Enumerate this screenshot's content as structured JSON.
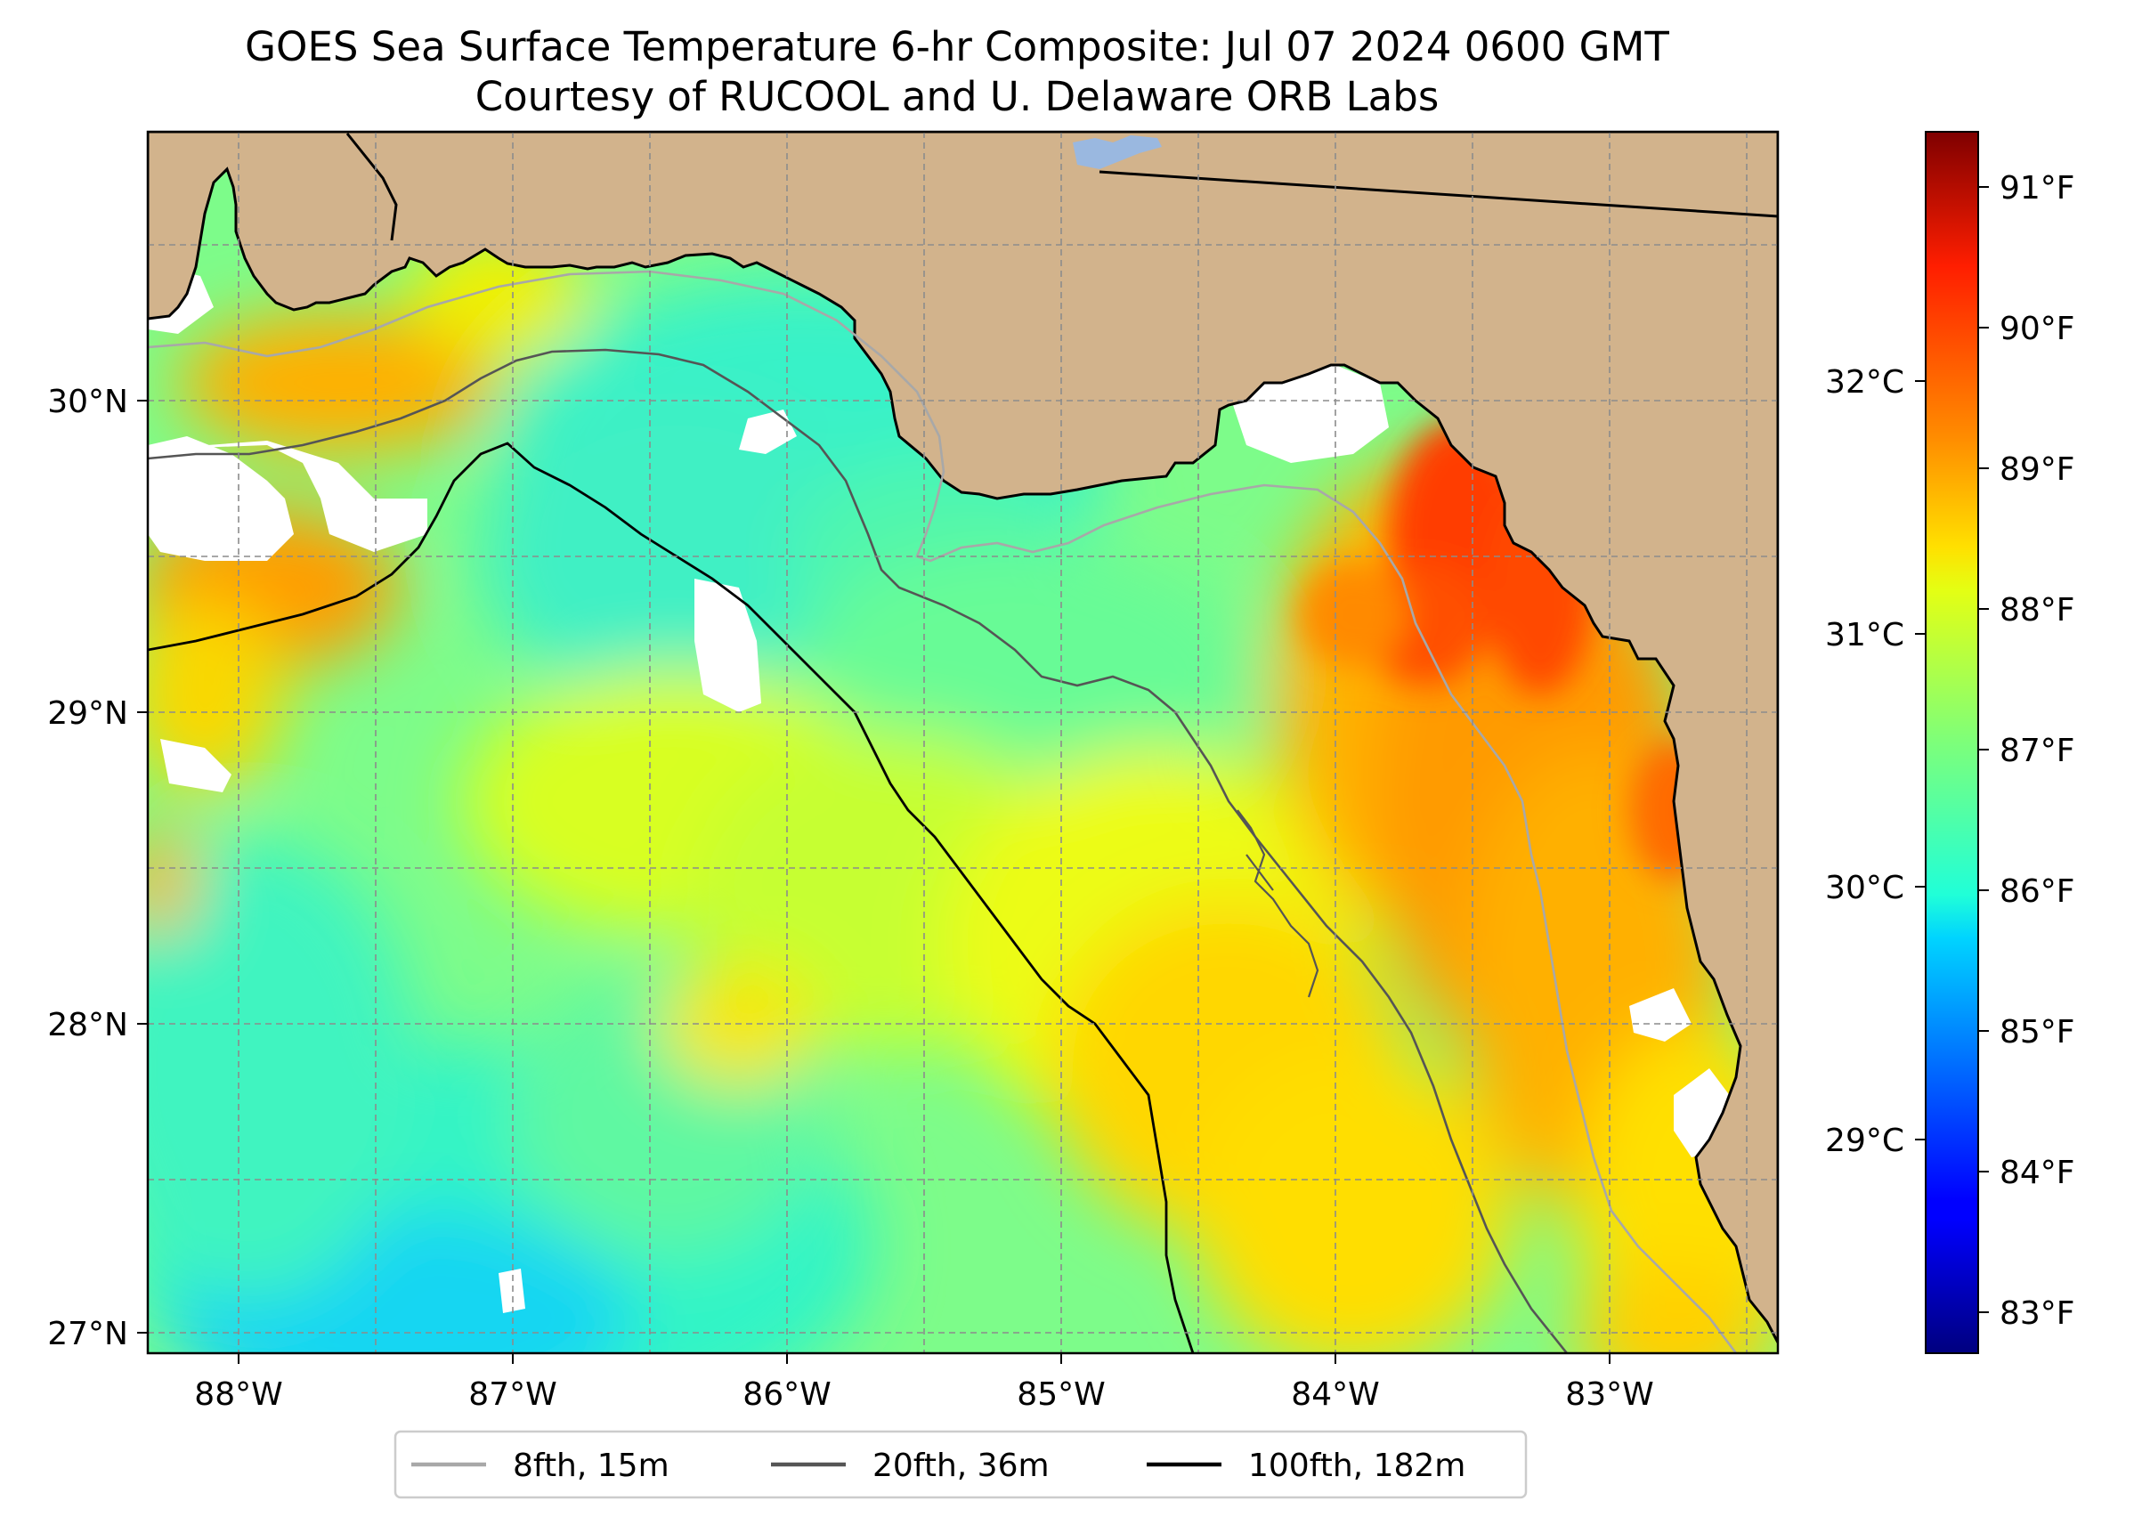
{
  "title": {
    "line1": "GOES Sea Surface Temperature 6-hr Composite: Jul 07 2024 0600 GMT",
    "line2": "Courtesy of RUCOOL and U. Delaware ORB Labs"
  },
  "map": {
    "lon_labels": [
      "88°W",
      "87°W",
      "86°W",
      "85°W",
      "84°W",
      "83°W"
    ],
    "lat_labels": [
      "30°N",
      "29°N",
      "28°N",
      "27°N"
    ],
    "colors": {
      "land": "#d2b38c",
      "cloud": "#ffffff",
      "coast": "#000000",
      "lake": "#9ab8e0",
      "grid": "#9a9a9a"
    }
  },
  "colorbar": {
    "fahrenheit_labels": [
      "91°F",
      "90°F",
      "89°F",
      "88°F",
      "87°F",
      "86°F",
      "85°F",
      "84°F",
      "83°F"
    ],
    "celsius_labels": [
      "32°C",
      "31°C",
      "30°C",
      "29°C"
    ],
    "colormap": "jet"
  },
  "legend": {
    "items": [
      {
        "label": "8fth, 15m",
        "color": "#a8a8a8"
      },
      {
        "label": "20fth, 36m",
        "color": "#555555"
      },
      {
        "label": "100fth, 182m",
        "color": "#000000"
      }
    ]
  }
}
